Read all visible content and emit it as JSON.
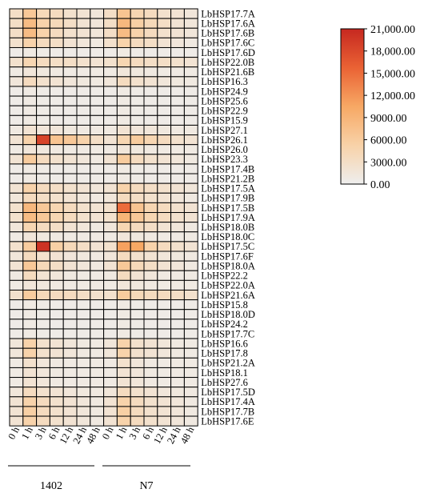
{
  "chart_data": {
    "type": "heatmap",
    "title": "",
    "xlabel": "",
    "ylabel": "",
    "groups": [
      "1402",
      "N7"
    ],
    "time_points": [
      "0 h",
      "1 h",
      "3 h",
      "6 h",
      "12 h",
      "24 h",
      "48 h"
    ],
    "columns": [
      "0 h",
      "1 h",
      "3 h",
      "6 h",
      "12 h",
      "24 h",
      "48 h",
      "0 h",
      "1 h",
      "3 h",
      "6 h",
      "12 h",
      "24 h",
      "48 h"
    ],
    "rows": [
      "LbHSP17.7A",
      "LbHSP17.6A",
      "LbHSP17.6B",
      "LbHSP17.6C",
      "LbHSP17.6D",
      "LbHSP22.0B",
      "LbHSP21.6B",
      "LbHSP16.3",
      "LbHSP24.9",
      "LbHSP25.6",
      "LbHSP22.9",
      "LbHSP15.9",
      "LbHSP27.1",
      "LbHSP26.1",
      "LbHSP26.0",
      "LbHSP23.3",
      "LbHSP17.4B",
      "LbHSP21.2B",
      "LbHSP17.5A",
      "LbHSP17.9B",
      "LbHSP17.5B",
      "LbHSP17.9A",
      "LbHSP18.0B",
      "LbHSP18.0C",
      "LbHSP17.5C",
      "LbHSP17.6F",
      "LbHSP18.0A",
      "LbHSP22.2",
      "LbHSP22.0A",
      "LbHSP21.6A",
      "LbHSP15.8",
      "LbHSP18.0D",
      "LbHSP24.2",
      "LbHSP17.7C",
      "LbHSP16.6",
      "LbHSP17.8",
      "LbHSP21.2A",
      "LbHSP18.1",
      "LbHSP27.6",
      "LbHSP17.5D",
      "LbHSP17.4A",
      "LbHSP17.7B",
      "LbHSP17.6E"
    ],
    "values": [
      [
        3000,
        6500,
        4000,
        3500,
        2500,
        2000,
        1500,
        3000,
        7000,
        4500,
        3500,
        2500,
        2000,
        1500
      ],
      [
        3000,
        8000,
        5000,
        4000,
        3000,
        2000,
        1500,
        3000,
        8500,
        5500,
        4000,
        3000,
        2000,
        1500
      ],
      [
        3000,
        8000,
        5000,
        3500,
        2500,
        2000,
        1500,
        3000,
        8000,
        5000,
        3500,
        2500,
        2000,
        1500
      ],
      [
        2500,
        5000,
        3500,
        3000,
        2000,
        1500,
        1000,
        2500,
        5000,
        3500,
        3000,
        2000,
        1500,
        1000
      ],
      [
        500,
        800,
        600,
        500,
        500,
        500,
        500,
        500,
        800,
        600,
        500,
        500,
        500,
        500
      ],
      [
        2500,
        4500,
        3500,
        3000,
        3000,
        2500,
        2000,
        2500,
        4500,
        3500,
        3000,
        3000,
        2500,
        2000
      ],
      [
        800,
        1500,
        1200,
        1000,
        800,
        800,
        800,
        800,
        1500,
        1200,
        1000,
        800,
        800,
        800
      ],
      [
        1500,
        3500,
        2500,
        2000,
        1500,
        1200,
        1000,
        1500,
        3500,
        2500,
        2000,
        1500,
        1200,
        1000
      ],
      [
        500,
        800,
        600,
        500,
        500,
        500,
        500,
        500,
        800,
        600,
        500,
        500,
        500,
        500
      ],
      [
        500,
        800,
        600,
        500,
        500,
        500,
        500,
        500,
        800,
        600,
        500,
        500,
        500,
        500
      ],
      [
        500,
        800,
        600,
        500,
        500,
        500,
        500,
        500,
        800,
        600,
        500,
        500,
        500,
        500
      ],
      [
        500,
        800,
        600,
        500,
        500,
        500,
        500,
        500,
        800,
        600,
        500,
        500,
        500,
        500
      ],
      [
        1000,
        2000,
        1500,
        1500,
        1200,
        1000,
        1000,
        1000,
        2000,
        1500,
        1500,
        1200,
        1000,
        1000
      ],
      [
        2000,
        5000,
        18500,
        7000,
        6500,
        5000,
        3000,
        2000,
        4500,
        6000,
        4500,
        3500,
        2500,
        2000
      ],
      [
        800,
        1500,
        1200,
        1000,
        800,
        800,
        800,
        800,
        1500,
        1200,
        1000,
        800,
        800,
        800
      ],
      [
        2000,
        6000,
        3500,
        2500,
        2000,
        1500,
        1000,
        2000,
        6000,
        3500,
        2500,
        2000,
        1500,
        1000
      ],
      [
        500,
        800,
        600,
        500,
        500,
        500,
        500,
        500,
        800,
        600,
        500,
        500,
        500,
        500
      ],
      [
        500,
        800,
        600,
        500,
        500,
        500,
        500,
        500,
        800,
        600,
        500,
        500,
        500,
        500
      ],
      [
        2000,
        5000,
        3500,
        3000,
        2500,
        2000,
        1500,
        2000,
        5000,
        3500,
        3000,
        2500,
        2000,
        1500
      ],
      [
        1500,
        3500,
        3000,
        2500,
        2000,
        1500,
        1000,
        1500,
        3500,
        3000,
        2500,
        2000,
        1500,
        1000
      ],
      [
        2500,
        8500,
        6500,
        4500,
        3500,
        2500,
        2000,
        2500,
        15000,
        7000,
        4500,
        3500,
        2500,
        2000
      ],
      [
        2500,
        8000,
        6500,
        4500,
        3500,
        2500,
        2000,
        2500,
        9000,
        6500,
        4500,
        3500,
        2500,
        2000
      ],
      [
        1500,
        4500,
        3500,
        3000,
        2000,
        1500,
        1000,
        1500,
        4500,
        3500,
        3000,
        2000,
        1500,
        1000
      ],
      [
        800,
        1500,
        1200,
        1000,
        800,
        800,
        800,
        800,
        1500,
        1200,
        1000,
        800,
        800,
        800
      ],
      [
        2500,
        6000,
        20000,
        5500,
        4000,
        3000,
        2000,
        2500,
        11000,
        10500,
        5000,
        3500,
        2500,
        2000
      ],
      [
        1500,
        3500,
        2500,
        2000,
        1500,
        1200,
        1000,
        1500,
        3500,
        2500,
        2000,
        1500,
        1200,
        1000
      ],
      [
        2000,
        6500,
        4000,
        3000,
        2000,
        1500,
        1000,
        2000,
        6500,
        4000,
        3000,
        2000,
        1500,
        1000
      ],
      [
        1000,
        3500,
        2000,
        1500,
        1000,
        800,
        800,
        1000,
        3500,
        2000,
        1500,
        1000,
        800,
        800
      ],
      [
        800,
        1500,
        1200,
        1000,
        800,
        800,
        800,
        800,
        1500,
        1200,
        1000,
        800,
        800,
        800
      ],
      [
        2500,
        6000,
        4000,
        3500,
        3500,
        3000,
        2500,
        2500,
        6000,
        4000,
        3500,
        3500,
        3000,
        2500
      ],
      [
        500,
        800,
        600,
        500,
        500,
        500,
        500,
        500,
        800,
        600,
        500,
        500,
        500,
        500
      ],
      [
        500,
        800,
        600,
        500,
        500,
        500,
        500,
        500,
        800,
        600,
        500,
        500,
        500,
        500
      ],
      [
        500,
        800,
        600,
        500,
        500,
        500,
        500,
        500,
        800,
        600,
        500,
        500,
        500,
        500
      ],
      [
        500,
        800,
        600,
        500,
        500,
        500,
        500,
        500,
        800,
        600,
        500,
        500,
        500,
        500
      ],
      [
        1500,
        5000,
        2500,
        2000,
        1500,
        1000,
        800,
        1500,
        5000,
        2500,
        2000,
        1500,
        1000,
        800
      ],
      [
        1500,
        5000,
        2500,
        2000,
        1500,
        1000,
        800,
        1500,
        5000,
        2500,
        2000,
        1500,
        1000,
        800
      ],
      [
        800,
        2500,
        1500,
        1000,
        800,
        800,
        800,
        800,
        2500,
        1500,
        1000,
        800,
        800,
        800
      ],
      [
        800,
        2000,
        1500,
        1000,
        800,
        800,
        800,
        800,
        2000,
        1500,
        1000,
        800,
        800,
        800
      ],
      [
        800,
        2000,
        1500,
        1000,
        800,
        800,
        800,
        800,
        2000,
        1500,
        1000,
        800,
        800,
        800
      ],
      [
        1500,
        3500,
        2500,
        2000,
        1500,
        1200,
        1000,
        1500,
        3500,
        2500,
        2000,
        1500,
        1200,
        1000
      ],
      [
        2000,
        5000,
        3500,
        2500,
        2000,
        1500,
        1000,
        2000,
        5000,
        3500,
        2500,
        2000,
        1500,
        1000
      ],
      [
        2000,
        5500,
        3500,
        2500,
        2000,
        1500,
        1000,
        2000,
        5500,
        3500,
        2500,
        2000,
        1500,
        1000
      ],
      [
        2000,
        5000,
        3500,
        2500,
        2000,
        1500,
        1000,
        2000,
        5000,
        3500,
        2500,
        2000,
        1500,
        1000
      ]
    ],
    "color_scale": {
      "min": 0,
      "max": 21000,
      "stops": [
        "#eeeeee",
        "#f8d2a8",
        "#f7a864",
        "#ea6234",
        "#c62820"
      ],
      "tick_labels": [
        "21,000.00",
        "18,000.00",
        "15,000.00",
        "12,000.00",
        "9000.00",
        "6000.00",
        "3000.00",
        "0.00"
      ],
      "tick_values": [
        21000,
        18000,
        15000,
        12000,
        9000,
        6000,
        3000,
        0
      ]
    },
    "legend_position": "top-right",
    "grid": true
  }
}
